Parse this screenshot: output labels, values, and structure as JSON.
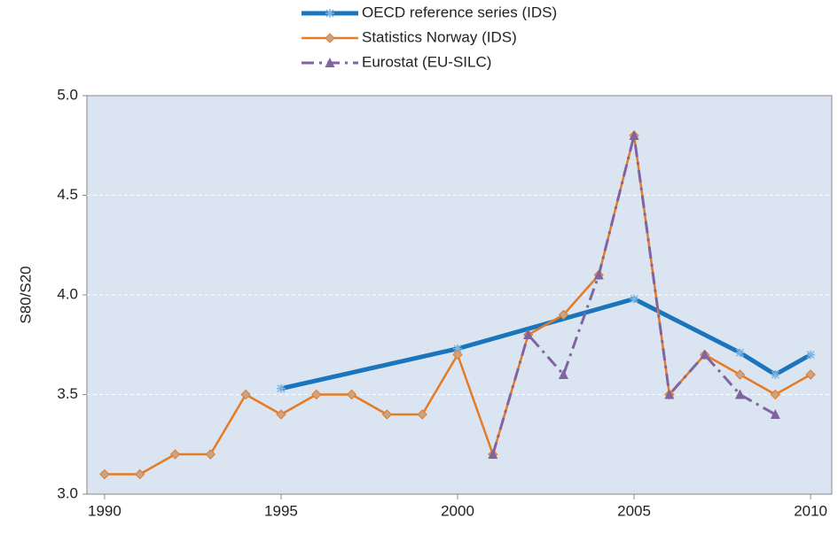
{
  "chart_data": {
    "type": "line",
    "y_label": "S80/S20",
    "legend": "top",
    "grid": true,
    "xlim": [
      1989.5,
      2010.6
    ],
    "xticks": [
      1990,
      1995,
      2000,
      2005,
      2010
    ],
    "ylim": [
      3.0,
      5.0
    ],
    "yticks": [
      {
        "value": 3.0,
        "label": "3.0"
      },
      3.5,
      {
        "value": 4.0,
        "label": "4.0"
      },
      4.5,
      {
        "value": 5.0,
        "label": "5.0"
      }
    ],
    "series": [
      {
        "name": "OECD reference series (IDS)",
        "color": "#1a75bc",
        "marker": "asterisk",
        "dash": "solid",
        "width": 5,
        "x": [
          1995,
          2000,
          2005,
          2008,
          2009,
          2010
        ],
        "values": [
          3.53,
          3.73,
          3.98,
          3.71,
          3.6,
          3.7
        ]
      },
      {
        "name": "Statistics Norway (IDS)",
        "color": "#e47b25",
        "marker": "diamond",
        "dash": "solid",
        "width": 2.5,
        "x": [
          1990,
          1991,
          1992,
          1993,
          1994,
          1995,
          1996,
          1997,
          1998,
          1999,
          2000,
          2001,
          2002,
          2003,
          2004,
          2005,
          2006,
          2007,
          2008,
          2009,
          2010
        ],
        "values": [
          3.1,
          3.1,
          3.2,
          3.2,
          3.5,
          3.4,
          3.5,
          3.5,
          3.4,
          3.4,
          3.7,
          3.2,
          3.8,
          3.9,
          4.1,
          4.8,
          3.5,
          3.7,
          3.6,
          3.5,
          3.6
        ]
      },
      {
        "name": "Eurostat (EU-SILC)",
        "color": "#8064a2",
        "marker": "triangle",
        "dash": "dashdot",
        "width": 3,
        "x": [
          2001,
          2002,
          2003,
          2004,
          2005,
          2006,
          2007,
          2008,
          2009
        ],
        "values": [
          3.2,
          3.8,
          3.6,
          4.1,
          4.8,
          3.5,
          3.7,
          3.5,
          3.4
        ]
      }
    ]
  }
}
